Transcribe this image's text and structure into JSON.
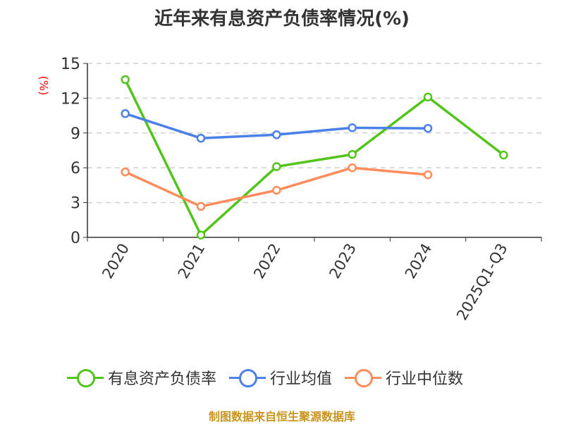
{
  "title": "近年来有息资产负债率情况(%)",
  "unit_label": "(%)",
  "source": "制图数据来自恒生聚源数据库",
  "legend": [
    {
      "label": "有息资产负债率",
      "color": "#52c41a"
    },
    {
      "label": "行业均值",
      "color": "#4a80e8"
    },
    {
      "label": "行业中位数",
      "color": "#ff8c5a"
    }
  ],
  "chart_data": {
    "type": "line",
    "title": "近年来有息资产负债率情况(%)",
    "xlabel": "",
    "ylabel": "(%)",
    "categories": [
      "2020",
      "2021",
      "2022",
      "2023",
      "2024",
      "2025Q1-Q3"
    ],
    "ylim": [
      0,
      15
    ],
    "yticks": [
      0,
      3,
      6,
      9,
      12,
      15
    ],
    "grid": "horizontal dashed",
    "legend_position": "bottom",
    "series": [
      {
        "name": "有息资产负债率",
        "color": "#52c41a",
        "values": [
          13.6,
          0.2,
          6.1,
          7.15,
          12.1,
          7.1
        ]
      },
      {
        "name": "行业均值",
        "color": "#4a80e8",
        "values": [
          10.67,
          8.55,
          8.85,
          9.45,
          9.4,
          null
        ]
      },
      {
        "name": "行业中位数",
        "color": "#ff8c5a",
        "values": [
          5.64,
          2.67,
          4.06,
          6.0,
          5.4,
          null
        ]
      }
    ]
  }
}
